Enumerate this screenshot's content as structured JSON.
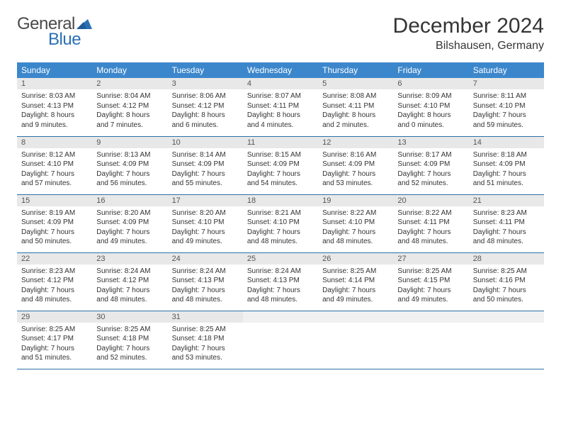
{
  "logo": {
    "text_general": "General",
    "text_blue": "Blue",
    "accent_color": "#2a6fb5"
  },
  "title": "December 2024",
  "location": "Bilshausen, Germany",
  "colors": {
    "header_bg": "#3c87cc",
    "header_text": "#ffffff",
    "daynum_bg": "#e8e8e8",
    "row_divider": "#2d6fa8",
    "body_text": "#333333",
    "title_text": "#353535"
  },
  "day_headers": [
    "Sunday",
    "Monday",
    "Tuesday",
    "Wednesday",
    "Thursday",
    "Friday",
    "Saturday"
  ],
  "days": [
    {
      "n": 1,
      "sunrise": "8:03 AM",
      "sunset": "4:13 PM",
      "daylight": "8 hours and 9 minutes."
    },
    {
      "n": 2,
      "sunrise": "8:04 AM",
      "sunset": "4:12 PM",
      "daylight": "8 hours and 7 minutes."
    },
    {
      "n": 3,
      "sunrise": "8:06 AM",
      "sunset": "4:12 PM",
      "daylight": "8 hours and 6 minutes."
    },
    {
      "n": 4,
      "sunrise": "8:07 AM",
      "sunset": "4:11 PM",
      "daylight": "8 hours and 4 minutes."
    },
    {
      "n": 5,
      "sunrise": "8:08 AM",
      "sunset": "4:11 PM",
      "daylight": "8 hours and 2 minutes."
    },
    {
      "n": 6,
      "sunrise": "8:09 AM",
      "sunset": "4:10 PM",
      "daylight": "8 hours and 0 minutes."
    },
    {
      "n": 7,
      "sunrise": "8:11 AM",
      "sunset": "4:10 PM",
      "daylight": "7 hours and 59 minutes."
    },
    {
      "n": 8,
      "sunrise": "8:12 AM",
      "sunset": "4:10 PM",
      "daylight": "7 hours and 57 minutes."
    },
    {
      "n": 9,
      "sunrise": "8:13 AM",
      "sunset": "4:09 PM",
      "daylight": "7 hours and 56 minutes."
    },
    {
      "n": 10,
      "sunrise": "8:14 AM",
      "sunset": "4:09 PM",
      "daylight": "7 hours and 55 minutes."
    },
    {
      "n": 11,
      "sunrise": "8:15 AM",
      "sunset": "4:09 PM",
      "daylight": "7 hours and 54 minutes."
    },
    {
      "n": 12,
      "sunrise": "8:16 AM",
      "sunset": "4:09 PM",
      "daylight": "7 hours and 53 minutes."
    },
    {
      "n": 13,
      "sunrise": "8:17 AM",
      "sunset": "4:09 PM",
      "daylight": "7 hours and 52 minutes."
    },
    {
      "n": 14,
      "sunrise": "8:18 AM",
      "sunset": "4:09 PM",
      "daylight": "7 hours and 51 minutes."
    },
    {
      "n": 15,
      "sunrise": "8:19 AM",
      "sunset": "4:09 PM",
      "daylight": "7 hours and 50 minutes."
    },
    {
      "n": 16,
      "sunrise": "8:20 AM",
      "sunset": "4:09 PM",
      "daylight": "7 hours and 49 minutes."
    },
    {
      "n": 17,
      "sunrise": "8:20 AM",
      "sunset": "4:10 PM",
      "daylight": "7 hours and 49 minutes."
    },
    {
      "n": 18,
      "sunrise": "8:21 AM",
      "sunset": "4:10 PM",
      "daylight": "7 hours and 48 minutes."
    },
    {
      "n": 19,
      "sunrise": "8:22 AM",
      "sunset": "4:10 PM",
      "daylight": "7 hours and 48 minutes."
    },
    {
      "n": 20,
      "sunrise": "8:22 AM",
      "sunset": "4:11 PM",
      "daylight": "7 hours and 48 minutes."
    },
    {
      "n": 21,
      "sunrise": "8:23 AM",
      "sunset": "4:11 PM",
      "daylight": "7 hours and 48 minutes."
    },
    {
      "n": 22,
      "sunrise": "8:23 AM",
      "sunset": "4:12 PM",
      "daylight": "7 hours and 48 minutes."
    },
    {
      "n": 23,
      "sunrise": "8:24 AM",
      "sunset": "4:12 PM",
      "daylight": "7 hours and 48 minutes."
    },
    {
      "n": 24,
      "sunrise": "8:24 AM",
      "sunset": "4:13 PM",
      "daylight": "7 hours and 48 minutes."
    },
    {
      "n": 25,
      "sunrise": "8:24 AM",
      "sunset": "4:13 PM",
      "daylight": "7 hours and 48 minutes."
    },
    {
      "n": 26,
      "sunrise": "8:25 AM",
      "sunset": "4:14 PM",
      "daylight": "7 hours and 49 minutes."
    },
    {
      "n": 27,
      "sunrise": "8:25 AM",
      "sunset": "4:15 PM",
      "daylight": "7 hours and 49 minutes."
    },
    {
      "n": 28,
      "sunrise": "8:25 AM",
      "sunset": "4:16 PM",
      "daylight": "7 hours and 50 minutes."
    },
    {
      "n": 29,
      "sunrise": "8:25 AM",
      "sunset": "4:17 PM",
      "daylight": "7 hours and 51 minutes."
    },
    {
      "n": 30,
      "sunrise": "8:25 AM",
      "sunset": "4:18 PM",
      "daylight": "7 hours and 52 minutes."
    },
    {
      "n": 31,
      "sunrise": "8:25 AM",
      "sunset": "4:18 PM",
      "daylight": "7 hours and 53 minutes."
    }
  ],
  "labels": {
    "sunrise": "Sunrise:",
    "sunset": "Sunset:",
    "daylight": "Daylight:"
  }
}
